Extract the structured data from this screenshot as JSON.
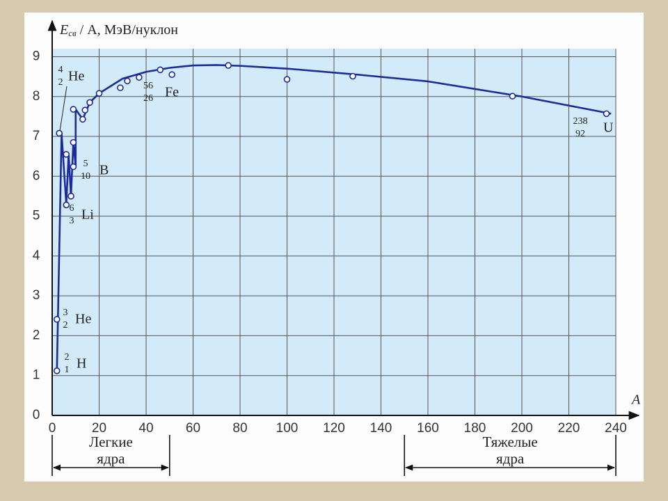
{
  "chart_data": {
    "type": "scatter",
    "y_label": {
      "main": "E",
      "sub": "св",
      "rest": " / A, МэВ/нуклон"
    },
    "x_label": "A",
    "xlim": [
      0,
      240
    ],
    "ylim": [
      0,
      9.2
    ],
    "xticks": [
      0,
      20,
      40,
      60,
      80,
      100,
      120,
      140,
      160,
      180,
      200,
      220,
      240
    ],
    "yticks": [
      0,
      1,
      2,
      3,
      4,
      5,
      6,
      7,
      8,
      9
    ],
    "grid": true,
    "series": [
      {
        "kind": "line",
        "color": "#1c2a9c",
        "x": [
          2,
          4,
          6,
          7,
          8,
          9,
          10,
          10,
          13,
          16,
          20,
          30,
          40,
          50,
          60,
          70,
          80,
          100,
          130,
          160,
          200,
          238
        ],
        "values": [
          1.1,
          7.07,
          5.3,
          6.55,
          5.5,
          6.85,
          6.24,
          7.68,
          7.43,
          7.85,
          8.08,
          8.45,
          8.62,
          8.72,
          8.78,
          8.79,
          8.77,
          8.7,
          8.55,
          8.38,
          8.0,
          7.57
        ]
      },
      {
        "kind": "points",
        "color": "#1c2a9c",
        "x": [
          2,
          2,
          3,
          6,
          6,
          8,
          9,
          9,
          9,
          13,
          14,
          16,
          20,
          29,
          32,
          37,
          46,
          51,
          75,
          100,
          128,
          196,
          236
        ],
        "values": [
          1.12,
          2.41,
          7.08,
          6.55,
          5.28,
          5.5,
          6.85,
          6.24,
          7.68,
          7.43,
          7.66,
          7.85,
          8.08,
          8.22,
          8.39,
          8.48,
          8.67,
          8.55,
          8.78,
          8.43,
          8.51,
          8.01,
          7.57
        ]
      }
    ],
    "annotations": [
      {
        "mass": "4",
        "charge": "2",
        "symbol": "He"
      },
      {
        "mass": "56",
        "charge": "26",
        "symbol": "Fe"
      },
      {
        "mass": "5",
        "charge": "10",
        "symbol": "B"
      },
      {
        "mass": "6",
        "charge": "3",
        "symbol": "Li"
      },
      {
        "mass": "3",
        "charge": "2",
        "symbol": "He"
      },
      {
        "mass": "2",
        "charge": "1",
        "symbol": "H"
      },
      {
        "mass": "238",
        "charge": "92",
        "symbol": "U"
      }
    ],
    "brackets": [
      {
        "range": [
          0,
          50
        ],
        "lines": [
          "Легкие",
          "ядра"
        ]
      },
      {
        "range": [
          150,
          240
        ],
        "lines": [
          "Тяжелые",
          "ядра"
        ]
      }
    ]
  }
}
